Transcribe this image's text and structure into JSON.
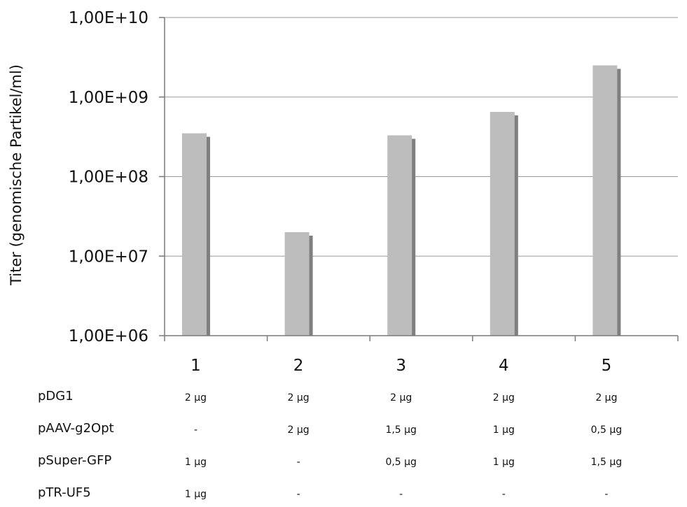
{
  "chart_data": {
    "type": "bar",
    "y_scale": "log",
    "categories": [
      "1",
      "2",
      "3",
      "4",
      "5"
    ],
    "values": [
      350000000,
      20000000,
      330000000,
      650000000,
      2500000000
    ],
    "ylabel": "Titer (genomische Partikel/ml)",
    "xlabel": "",
    "ylim": [
      1000000,
      10000000000
    ],
    "yticks": [
      1000000,
      10000000,
      100000000,
      1000000000,
      10000000000
    ],
    "ytick_labels": [
      "1,00E+06",
      "1,00E+07",
      "1,00E+08",
      "1,00E+09",
      "1,00E+10"
    ],
    "grid": true,
    "legend": "none"
  },
  "colors": {
    "bar_front": "#bdbdbd",
    "bar_shadow": "#7f7f7f",
    "grid": "#9a9a9a",
    "axis": "#7a7a7a"
  },
  "table": {
    "rows": [
      {
        "label": "pDG1",
        "cells": [
          "2 µg",
          "2 µg",
          "2 µg",
          "2 µg",
          "2 µg"
        ]
      },
      {
        "label": "pAAV-g2Opt",
        "cells": [
          "-",
          "2 µg",
          "1,5 µg",
          "1 µg",
          "0,5 µg"
        ]
      },
      {
        "label": "pSuper-GFP",
        "cells": [
          "1 µg",
          "-",
          "0,5 µg",
          "1 µg",
          "1,5 µg"
        ]
      },
      {
        "label": "pTR-UF5",
        "cells": [
          "1 µg",
          "-",
          "-",
          "-",
          "-"
        ]
      }
    ]
  }
}
